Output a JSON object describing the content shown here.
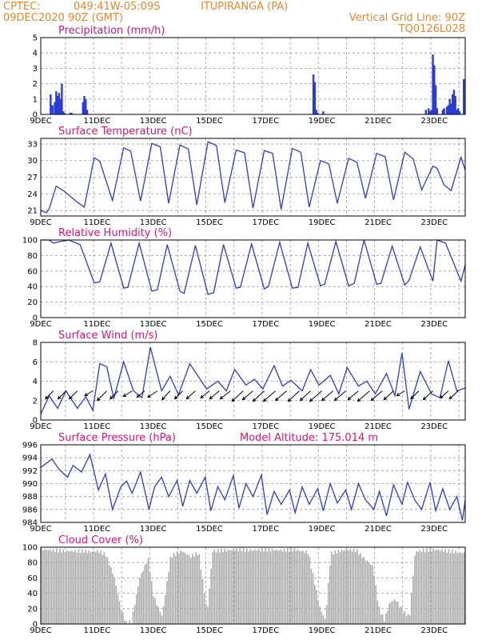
{
  "header": {
    "source": "CPTEC:",
    "coords": "049:41W-05:09S",
    "location": "ITUPIRANGA (PA)",
    "datetime": "09DEC2020 90Z (GMT)",
    "grid_note": "Vertical Grid Line: 90Z",
    "code": "TQ0126L028"
  },
  "colors": {
    "title": "#e0107a",
    "header": "#e8872a",
    "series": "#2b3bd6",
    "cloud": "#a9a9a9"
  },
  "chart_data": [
    {
      "type": "bar",
      "title": "Precipitation (mm/h)",
      "x_tick_labels": [
        "9DEC",
        "11DEC",
        "13DEC",
        "15DEC",
        "17DEC",
        "19DEC",
        "21DEC",
        "23DEC"
      ],
      "x_range_days": [
        9,
        24.1
      ],
      "ylim": [
        0,
        5
      ],
      "y_ticks": [
        0,
        1,
        2,
        3,
        4,
        5
      ],
      "x": [
        9.35,
        9.42,
        9.5,
        9.55,
        9.6,
        9.65,
        9.7,
        9.75,
        9.8,
        9.85,
        10.05,
        10.1,
        10.5,
        10.55,
        10.6,
        10.65,
        18.7,
        18.75,
        18.8,
        18.85,
        19.05,
        22.7,
        22.8,
        22.85,
        22.9,
        22.95,
        23.0,
        23.05,
        23.1,
        23.3,
        23.35,
        23.45,
        23.5,
        23.55,
        23.6,
        23.65,
        23.7,
        23.75,
        23.8,
        23.85,
        23.9,
        24.05
      ],
      "values": [
        1.3,
        0.6,
        0.8,
        1.5,
        1.2,
        1.4,
        1.0,
        2.0,
        0.2,
        0.1,
        0.1,
        0.1,
        0.8,
        1.2,
        1.0,
        0.3,
        2.6,
        2.1,
        0.3,
        0.1,
        0.2,
        0.3,
        0.4,
        0.2,
        0.3,
        3.9,
        3.2,
        1.9,
        0.4,
        0.3,
        0.4,
        0.5,
        0.6,
        1.0,
        0.7,
        1.3,
        1.6,
        1.2,
        0.3,
        0.4,
        0.2,
        2.3
      ]
    },
    {
      "type": "line",
      "title": "Surface Temperature (nC)",
      "x_tick_labels": [
        "9DEC",
        "11DEC",
        "13DEC",
        "15DEC",
        "17DEC",
        "19DEC",
        "21DEC",
        "23DEC"
      ],
      "x_range_days": [
        9,
        24.1
      ],
      "ylim": [
        20,
        34
      ],
      "y_ticks": [
        21,
        24,
        27,
        30,
        33
      ],
      "x": [
        9.0,
        9.2,
        9.3,
        9.55,
        9.85,
        10.3,
        10.55,
        10.9,
        11.1,
        11.55,
        11.95,
        12.2,
        12.55,
        12.95,
        13.25,
        13.55,
        13.95,
        14.25,
        14.55,
        14.95,
        15.25,
        15.55,
        15.95,
        16.25,
        16.55,
        16.95,
        17.25,
        17.55,
        17.95,
        18.25,
        18.55,
        18.95,
        19.25,
        19.55,
        19.95,
        20.25,
        20.55,
        20.95,
        21.25,
        21.55,
        21.95,
        22.25,
        22.55,
        22.95,
        23.1,
        23.35,
        23.6,
        23.95,
        24.1
      ],
      "values": [
        21.0,
        20.6,
        21.3,
        25.4,
        24.4,
        22.5,
        21.6,
        30.5,
        29.9,
        22.8,
        32.3,
        31.7,
        22.7,
        33.1,
        32.5,
        22.3,
        32.8,
        32.1,
        22.0,
        33.4,
        32.7,
        22.4,
        31.9,
        31.4,
        21.4,
        31.8,
        31.3,
        21.2,
        32.2,
        31.5,
        21.6,
        30.0,
        29.4,
        22.3,
        30.4,
        29.7,
        23.2,
        31.3,
        30.7,
        22.9,
        31.5,
        30.3,
        24.7,
        29.0,
        28.6,
        25.6,
        24.6,
        30.6,
        28.3
      ]
    },
    {
      "type": "line",
      "title": "Relative Humidity (%)",
      "x_tick_labels": [
        "9DEC",
        "11DEC",
        "13DEC",
        "15DEC",
        "17DEC",
        "19DEC",
        "21DEC",
        "23DEC"
      ],
      "x_range_days": [
        9,
        24.1
      ],
      "ylim": [
        0,
        100
      ],
      "y_ticks": [
        0,
        20,
        40,
        60,
        80,
        100
      ],
      "x": [
        9.0,
        9.3,
        9.45,
        9.7,
        10.0,
        10.4,
        10.9,
        11.1,
        11.5,
        11.95,
        12.1,
        12.5,
        12.95,
        13.15,
        13.5,
        13.95,
        14.1,
        14.5,
        14.95,
        15.15,
        15.5,
        15.95,
        16.1,
        16.5,
        16.95,
        17.1,
        17.5,
        17.95,
        18.15,
        18.5,
        18.95,
        19.1,
        19.5,
        19.95,
        20.15,
        20.5,
        20.95,
        21.1,
        21.5,
        21.95,
        22.1,
        22.5,
        22.95,
        23.1,
        23.4,
        23.95,
        24.1
      ],
      "values": [
        100,
        100,
        96,
        98,
        100,
        94,
        45,
        46,
        96,
        38,
        39,
        96,
        34,
        36,
        94,
        34,
        31,
        93,
        30,
        32,
        94,
        38,
        39,
        95,
        37,
        40,
        97,
        38,
        39,
        96,
        41,
        43,
        98,
        41,
        44,
        100,
        43,
        44,
        92,
        42,
        48,
        91,
        47,
        100,
        96,
        47,
        68
      ]
    },
    {
      "type": "line",
      "title": "Surface Wind (m/s)",
      "x_tick_labels": [
        "9DEC",
        "11DEC",
        "13DEC",
        "15DEC",
        "17DEC",
        "19DEC",
        "21DEC",
        "23DEC"
      ],
      "x_range_days": [
        9,
        24.1
      ],
      "ylim": [
        0,
        8
      ],
      "y_ticks": [
        0,
        2,
        4,
        6,
        8
      ],
      "x": [
        9.0,
        9.3,
        9.6,
        9.9,
        10.3,
        10.6,
        10.85,
        11.1,
        11.35,
        11.6,
        11.95,
        12.3,
        12.6,
        12.9,
        13.3,
        13.6,
        13.9,
        14.3,
        14.6,
        14.9,
        15.3,
        15.6,
        15.9,
        16.3,
        16.6,
        16.9,
        17.3,
        17.6,
        17.9,
        18.3,
        18.6,
        18.9,
        19.3,
        19.6,
        19.9,
        20.3,
        20.6,
        20.9,
        21.3,
        21.6,
        21.85,
        22.1,
        22.5,
        22.9,
        23.2,
        23.5,
        23.8,
        24.1
      ],
      "values": [
        0.6,
        2.5,
        1.2,
        3.0,
        1.2,
        2.4,
        1.0,
        5.8,
        5.5,
        2.2,
        6.0,
        3.0,
        2.3,
        7.5,
        3.0,
        4.5,
        2.6,
        5.8,
        4.5,
        3.2,
        4.0,
        3.0,
        5.2,
        3.6,
        4.2,
        3.2,
        5.6,
        3.5,
        4.1,
        3.0,
        5.2,
        3.6,
        4.6,
        2.7,
        5.4,
        3.5,
        4.0,
        2.7,
        4.8,
        2.5,
        6.9,
        1.1,
        5.0,
        2.7,
        2.3,
        6.1,
        3.0,
        3.3
      ]
    },
    {
      "type": "line",
      "title": "Surface Pressure (hPa)",
      "annotation": "Model Altitude: 175.014 m",
      "x_tick_labels": [
        "9DEC",
        "11DEC",
        "13DEC",
        "15DEC",
        "17DEC",
        "19DEC",
        "21DEC",
        "23DEC"
      ],
      "x_range_days": [
        9,
        24.1
      ],
      "ylim": [
        984,
        996
      ],
      "y_ticks": [
        984,
        986,
        988,
        990,
        992,
        994,
        996
      ],
      "x": [
        9.0,
        9.4,
        9.65,
        9.95,
        10.15,
        10.45,
        10.75,
        11.05,
        11.3,
        11.55,
        11.85,
        12.05,
        12.25,
        12.55,
        12.85,
        13.05,
        13.3,
        13.55,
        13.85,
        14.05,
        14.3,
        14.55,
        14.85,
        15.05,
        15.3,
        15.55,
        15.85,
        16.05,
        16.3,
        16.55,
        16.85,
        17.05,
        17.3,
        17.55,
        17.85,
        18.05,
        18.3,
        18.55,
        18.85,
        19.05,
        19.3,
        19.55,
        19.85,
        20.05,
        20.3,
        20.55,
        20.85,
        21.05,
        21.3,
        21.55,
        21.85,
        22.05,
        22.3,
        22.55,
        22.85,
        23.05,
        23.3,
        23.55,
        23.8,
        24.0,
        24.1
      ],
      "values": [
        992.5,
        993.8,
        992.2,
        991.0,
        992.8,
        991.8,
        994.5,
        989.0,
        991.5,
        986.0,
        989.5,
        990.4,
        988.5,
        991.8,
        986.0,
        989.5,
        991.0,
        988.0,
        990.5,
        986.5,
        990.5,
        988.5,
        991.0,
        985.8,
        989.5,
        987.5,
        991.2,
        986.2,
        990.0,
        988.0,
        991.3,
        985.2,
        988.8,
        986.8,
        989.0,
        985.5,
        989.5,
        986.8,
        989.2,
        985.8,
        990.0,
        987.0,
        989.0,
        986.0,
        990.0,
        987.5,
        986.0,
        988.8,
        985.0,
        989.8,
        986.8,
        990.2,
        987.5,
        986.0,
        990.2,
        985.8,
        989.2,
        986.0,
        988.0,
        984.3,
        987.5
      ]
    },
    {
      "type": "area",
      "title": "Cloud Cover (%)",
      "x_tick_labels": [
        "9DEC",
        "11DEC",
        "13DEC",
        "15DEC",
        "17DEC",
        "19DEC",
        "21DEC",
        "23DEC"
      ],
      "x_range_days": [
        9,
        24.1
      ],
      "ylim": [
        0,
        100
      ],
      "y_ticks": [
        0,
        20,
        40,
        60,
        80,
        100
      ],
      "x": [
        9.0,
        9.5,
        10.0,
        10.5,
        10.8,
        11.0,
        11.3,
        11.6,
        11.8,
        12.0,
        12.2,
        12.5,
        12.8,
        13.0,
        13.3,
        13.6,
        13.8,
        14.0,
        14.3,
        14.6,
        14.9,
        15.1,
        15.5,
        16.0,
        16.5,
        17.0,
        17.5,
        18.0,
        18.5,
        18.9,
        19.1,
        19.3,
        19.6,
        19.9,
        20.2,
        20.5,
        20.8,
        21.0,
        21.2,
        21.4,
        21.6,
        21.9,
        22.1,
        22.3,
        22.6,
        23.0,
        23.5,
        24.1
      ],
      "values": [
        97,
        96,
        95,
        95,
        94,
        95,
        90,
        60,
        25,
        2,
        3,
        60,
        85,
        35,
        10,
        88,
        92,
        95,
        88,
        93,
        15,
        95,
        96,
        97,
        96,
        97,
        96,
        97,
        93,
        22,
        5,
        92,
        95,
        97,
        96,
        85,
        75,
        22,
        5,
        28,
        32,
        15,
        10,
        94,
        96,
        97,
        95,
        92
      ]
    }
  ]
}
